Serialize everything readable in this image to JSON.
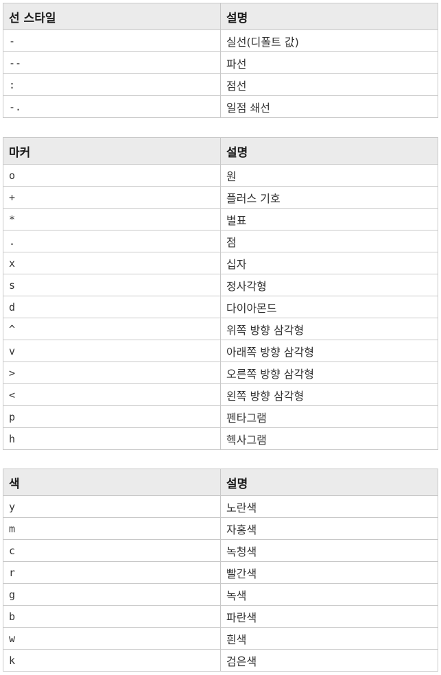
{
  "line_styles": {
    "headers": [
      "선 스타일",
      "설명"
    ],
    "rows": [
      {
        "code": "-",
        "desc": "실선(디폴트 값)"
      },
      {
        "code": "--",
        "desc": "파선"
      },
      {
        "code": ":",
        "desc": "점선"
      },
      {
        "code": "-.",
        "desc": "일점 쇄선"
      }
    ]
  },
  "markers": {
    "headers": [
      "마커",
      "설명"
    ],
    "rows": [
      {
        "code": "o",
        "desc": "원"
      },
      {
        "code": "+",
        "desc": "플러스 기호"
      },
      {
        "code": "*",
        "desc": "별표"
      },
      {
        "code": ".",
        "desc": "점"
      },
      {
        "code": "x",
        "desc": "십자"
      },
      {
        "code": "s",
        "desc": "정사각형"
      },
      {
        "code": "d",
        "desc": "다이아몬드"
      },
      {
        "code": "^",
        "desc": "위쪽 방향 삼각형"
      },
      {
        "code": "v",
        "desc": "아래쪽 방향 삼각형"
      },
      {
        "code": ">",
        "desc": "오른쪽 방향 삼각형"
      },
      {
        "code": "<",
        "desc": "왼쪽 방향 삼각형"
      },
      {
        "code": "p",
        "desc": "펜타그램"
      },
      {
        "code": "h",
        "desc": "헥사그램"
      }
    ]
  },
  "colors": {
    "headers": [
      "색",
      "설명"
    ],
    "rows": [
      {
        "code": "y",
        "desc": "노란색"
      },
      {
        "code": "m",
        "desc": "자홍색"
      },
      {
        "code": "c",
        "desc": "녹청색"
      },
      {
        "code": "r",
        "desc": "빨간색"
      },
      {
        "code": "g",
        "desc": "녹색"
      },
      {
        "code": "b",
        "desc": "파란색"
      },
      {
        "code": "w",
        "desc": "흰색"
      },
      {
        "code": "k",
        "desc": "검은색"
      }
    ]
  }
}
